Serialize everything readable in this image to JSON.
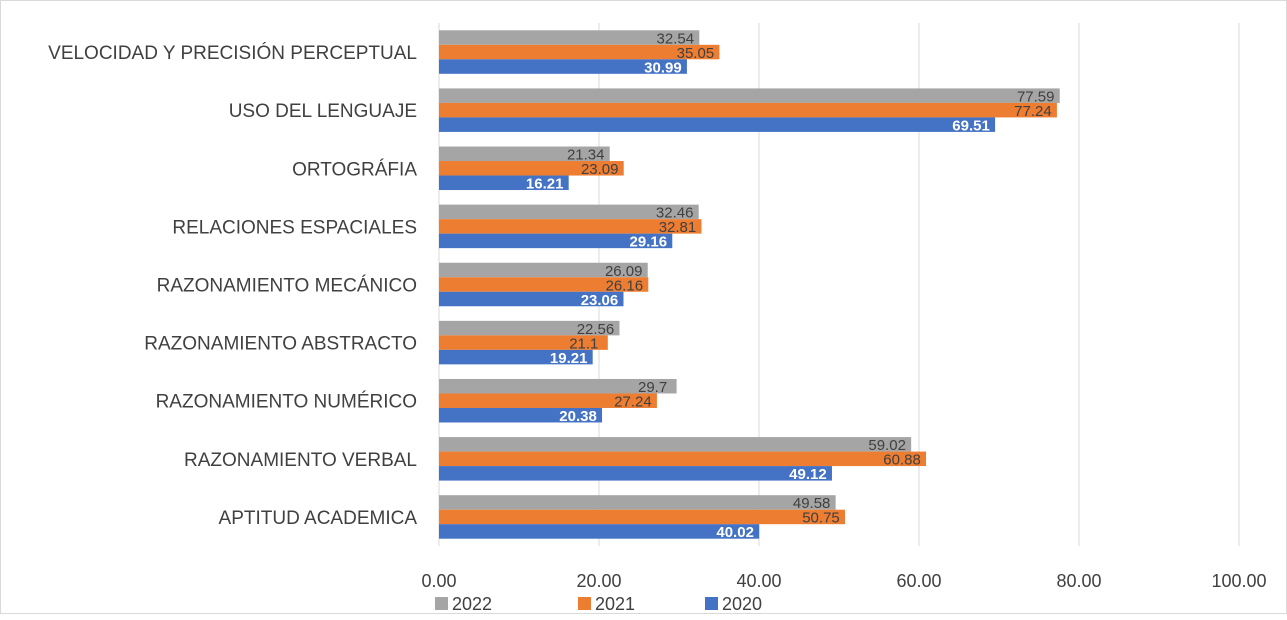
{
  "chart_data": {
    "type": "bar",
    "orientation": "horizontal",
    "title": "",
    "xlabel": "",
    "ylabel": "",
    "xlim": [
      0,
      100
    ],
    "x_ticks": [
      "0.00",
      "20.00",
      "40.00",
      "60.00",
      "80.00",
      "100.00"
    ],
    "grid": true,
    "legend_position": "bottom",
    "categories": [
      "VELOCIDAD Y PRECISIÓN PERCEPTUAL",
      "USO DEL LENGUAJE",
      "ORTOGRÁFIA",
      "RELACIONES ESPACIALES",
      "RAZONAMIENTO MECÁNICO",
      "RAZONAMIENTO ABSTRACTO",
      "RAZONAMIENTO NUMÉRICO",
      "RAZONAMIENTO VERBAL",
      "APTITUD ACADEMICA"
    ],
    "series": [
      {
        "name": "2022",
        "color": "#a5a5a5",
        "labels": [
          "32.54",
          "77.59",
          "21.34",
          "32.46",
          "26.09",
          "22.56",
          "29.7",
          "59.02",
          "49.58"
        ],
        "values": [
          32.54,
          77.59,
          21.34,
          32.46,
          26.09,
          22.56,
          29.7,
          59.02,
          49.58
        ]
      },
      {
        "name": "2021",
        "color": "#ed7d31",
        "labels": [
          "35.05",
          "77.24",
          "23.09",
          "32.81",
          "26.16",
          "21.1",
          "27.24",
          "60.88",
          "50.75"
        ],
        "values": [
          35.05,
          77.24,
          23.09,
          32.81,
          26.16,
          21.1,
          27.24,
          60.88,
          50.75
        ]
      },
      {
        "name": "2020",
        "color": "#4472c4",
        "labels": [
          "30.99",
          "69.51",
          "16.21",
          "29.16",
          "23.06",
          "19.21",
          "20.38",
          "49.12",
          "40.02"
        ],
        "values": [
          30.99,
          69.51,
          16.21,
          29.16,
          23.06,
          19.21,
          20.38,
          49.12,
          40.02
        ]
      }
    ]
  }
}
